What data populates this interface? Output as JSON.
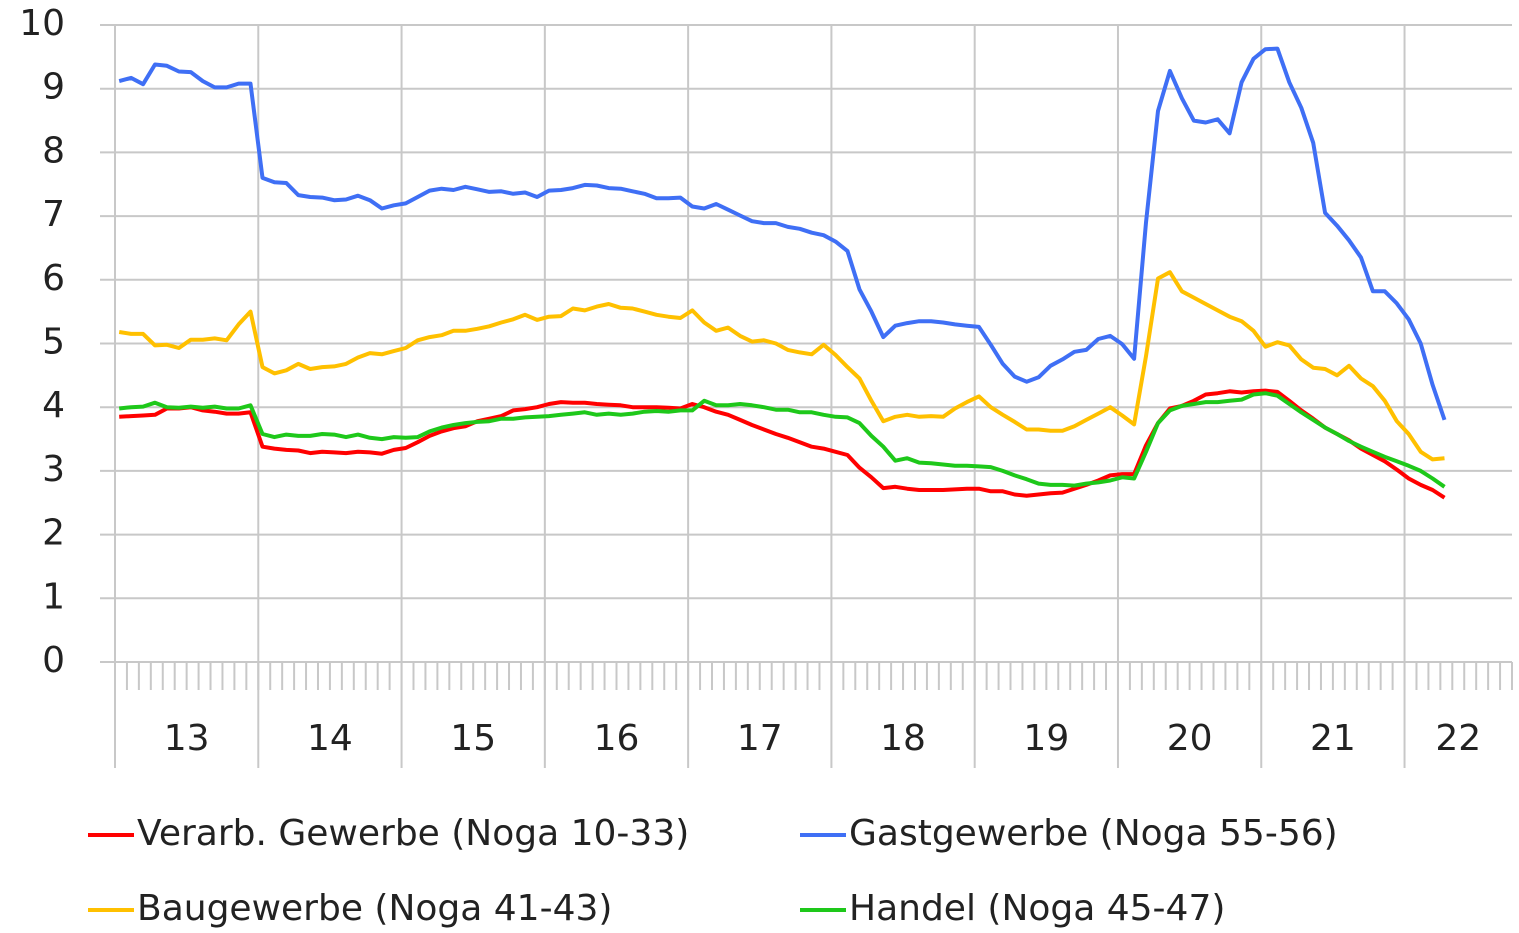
{
  "chart_data": {
    "type": "line",
    "categories": [
      "13",
      null,
      null,
      null,
      null,
      null,
      null,
      null,
      null,
      null,
      null,
      null,
      "14",
      null,
      null,
      null,
      null,
      null,
      null,
      null,
      null,
      null,
      null,
      null,
      "15",
      null,
      null,
      null,
      null,
      null,
      null,
      null,
      null,
      null,
      null,
      null,
      "16",
      null,
      null,
      null,
      null,
      null,
      null,
      null,
      null,
      null,
      null,
      null,
      "17",
      null,
      null,
      null,
      null,
      null,
      null,
      null,
      null,
      null,
      null,
      null,
      "18",
      null,
      null,
      null,
      null,
      null,
      null,
      null,
      null,
      null,
      null,
      null,
      "19",
      null,
      null,
      null,
      null,
      null,
      null,
      null,
      null,
      null,
      null,
      null,
      "20",
      null,
      null,
      null,
      null,
      null,
      null,
      null,
      null,
      null,
      null,
      null,
      "21",
      null,
      null,
      null,
      null,
      null,
      null,
      null,
      null,
      null,
      null,
      null,
      "22",
      null,
      null,
      null,
      null,
      null,
      null,
      null,
      null
    ],
    "series": [
      {
        "name": "Verarb. Gewerbe (Noga 10-33)",
        "color": "#ff0000",
        "values": [
          3.85,
          3.86,
          3.87,
          3.88,
          3.98,
          3.98,
          4.0,
          3.95,
          3.93,
          3.9,
          3.9,
          3.92,
          3.38,
          3.35,
          3.33,
          3.32,
          3.28,
          3.3,
          3.29,
          3.28,
          3.3,
          3.29,
          3.27,
          3.33,
          3.36,
          3.45,
          3.55,
          3.62,
          3.67,
          3.7,
          3.78,
          3.82,
          3.86,
          3.95,
          3.97,
          4.0,
          4.05,
          4.08,
          4.07,
          4.07,
          4.05,
          4.04,
          4.03,
          4.0,
          4.0,
          4.0,
          3.99,
          3.98,
          4.05,
          4.0,
          3.93,
          3.88,
          3.8,
          3.72,
          3.65,
          3.58,
          3.52,
          3.45,
          3.38,
          3.35,
          3.3,
          3.25,
          3.05,
          2.9,
          2.73,
          2.75,
          2.72,
          2.7,
          2.7,
          2.7,
          2.71,
          2.72,
          2.72,
          2.68,
          2.68,
          2.63,
          2.61,
          2.63,
          2.65,
          2.66,
          2.72,
          2.78,
          2.85,
          2.93,
          2.95,
          2.95,
          3.4,
          3.75,
          3.98,
          4.02,
          4.1,
          4.2,
          4.22,
          4.25,
          4.23,
          4.25,
          4.26,
          4.24,
          4.1,
          3.95,
          3.82,
          3.68,
          3.58,
          3.48,
          3.35,
          3.25,
          3.15,
          3.02,
          2.88,
          2.78,
          2.7,
          2.58,
          null,
          null,
          null,
          null,
          null
        ]
      },
      {
        "name": "Gastgewerbe (Noga 55-56)",
        "color": "#3f6ff5",
        "values": [
          9.12,
          9.17,
          9.07,
          9.38,
          9.36,
          9.27,
          9.26,
          9.12,
          9.02,
          9.02,
          9.08,
          9.08,
          7.6,
          7.53,
          7.52,
          7.33,
          7.3,
          7.29,
          7.25,
          7.26,
          7.32,
          7.25,
          7.12,
          7.17,
          7.2,
          7.3,
          7.4,
          7.43,
          7.41,
          7.46,
          7.42,
          7.38,
          7.39,
          7.35,
          7.37,
          7.3,
          7.4,
          7.41,
          7.44,
          7.49,
          7.48,
          7.44,
          7.43,
          7.39,
          7.35,
          7.28,
          7.28,
          7.29,
          7.15,
          7.12,
          7.19,
          7.1,
          7.01,
          6.92,
          6.89,
          6.89,
          6.83,
          6.8,
          6.74,
          6.7,
          6.6,
          6.45,
          5.85,
          5.5,
          5.1,
          5.28,
          5.32,
          5.35,
          5.35,
          5.33,
          5.3,
          5.28,
          5.26,
          4.98,
          4.68,
          4.48,
          4.4,
          4.47,
          4.65,
          4.75,
          4.87,
          4.9,
          5.07,
          5.12,
          4.99,
          4.76,
          6.9,
          8.65,
          9.28,
          8.85,
          8.5,
          8.47,
          8.52,
          8.3,
          9.1,
          9.47,
          9.62,
          9.63,
          9.1,
          8.7,
          8.15,
          7.05,
          6.85,
          6.62,
          6.35,
          5.82,
          5.82,
          5.63,
          5.38,
          5.0,
          4.35,
          3.8,
          null,
          null,
          null,
          null,
          null
        ]
      },
      {
        "name": "Baugewerbe (Noga 41-43)",
        "color": "#ffc000",
        "values": [
          5.18,
          5.15,
          5.15,
          4.97,
          4.98,
          4.93,
          5.06,
          5.06,
          5.08,
          5.05,
          5.3,
          5.5,
          4.63,
          4.53,
          4.58,
          4.68,
          4.6,
          4.63,
          4.64,
          4.68,
          4.78,
          4.85,
          4.83,
          4.88,
          4.93,
          5.05,
          5.1,
          5.13,
          5.2,
          5.2,
          5.23,
          5.27,
          5.33,
          5.38,
          5.45,
          5.37,
          5.42,
          5.43,
          5.55,
          5.52,
          5.58,
          5.62,
          5.56,
          5.55,
          5.5,
          5.45,
          5.42,
          5.4,
          5.52,
          5.33,
          5.2,
          5.25,
          5.12,
          5.03,
          5.05,
          5.0,
          4.9,
          4.86,
          4.83,
          4.98,
          4.82,
          4.63,
          4.45,
          4.1,
          3.78,
          3.85,
          3.88,
          3.85,
          3.86,
          3.85,
          3.98,
          4.08,
          4.17,
          4.0,
          3.88,
          3.77,
          3.65,
          3.65,
          3.63,
          3.63,
          3.7,
          3.8,
          3.9,
          4.0,
          3.87,
          3.73,
          4.8,
          6.02,
          6.12,
          5.82,
          5.72,
          5.62,
          5.52,
          5.42,
          5.35,
          5.2,
          4.95,
          5.02,
          4.97,
          4.75,
          4.62,
          4.6,
          4.5,
          4.65,
          4.45,
          4.33,
          4.1,
          3.78,
          3.58,
          3.3,
          3.18,
          3.2,
          null,
          null,
          null,
          null,
          null
        ]
      },
      {
        "name": "Handel (Noga 45-47)",
        "color": "#1ec81a",
        "values": [
          3.98,
          4.0,
          4.01,
          4.07,
          4.0,
          3.99,
          4.01,
          3.99,
          4.01,
          3.98,
          3.98,
          4.03,
          3.58,
          3.53,
          3.57,
          3.55,
          3.55,
          3.58,
          3.57,
          3.53,
          3.57,
          3.52,
          3.5,
          3.53,
          3.52,
          3.53,
          3.62,
          3.68,
          3.72,
          3.75,
          3.77,
          3.78,
          3.82,
          3.82,
          3.84,
          3.85,
          3.86,
          3.88,
          3.9,
          3.92,
          3.88,
          3.9,
          3.88,
          3.9,
          3.93,
          3.94,
          3.93,
          3.95,
          3.95,
          4.1,
          4.03,
          4.03,
          4.05,
          4.03,
          4.0,
          3.96,
          3.96,
          3.92,
          3.92,
          3.88,
          3.85,
          3.84,
          3.75,
          3.55,
          3.38,
          3.16,
          3.2,
          3.13,
          3.12,
          3.1,
          3.08,
          3.08,
          3.07,
          3.06,
          3.0,
          2.93,
          2.87,
          2.8,
          2.78,
          2.78,
          2.77,
          2.8,
          2.82,
          2.85,
          2.9,
          2.88,
          3.3,
          3.75,
          3.95,
          4.02,
          4.05,
          4.08,
          4.08,
          4.1,
          4.12,
          4.2,
          4.22,
          4.18,
          4.05,
          3.92,
          3.8,
          3.68,
          3.58,
          3.47,
          3.38,
          3.3,
          3.22,
          3.15,
          3.08,
          3.0,
          2.88,
          2.75,
          null,
          null,
          null,
          null,
          null
        ]
      }
    ],
    "ylim": [
      0,
      10
    ],
    "yticks": [
      0,
      1,
      2,
      3,
      4,
      5,
      6,
      7,
      8,
      9,
      10
    ],
    "grid": true
  }
}
